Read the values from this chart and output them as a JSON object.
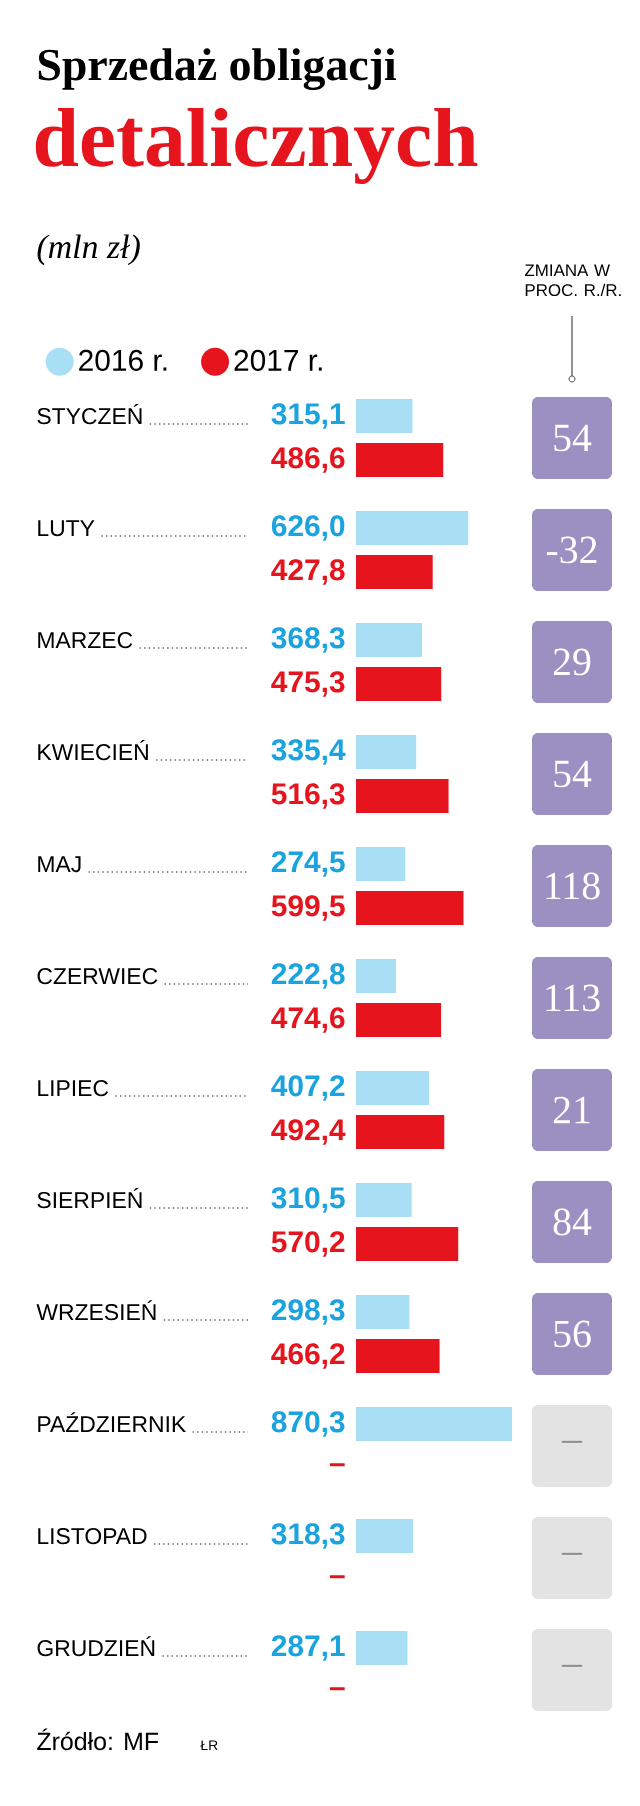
{
  "chart_data": {
    "type": "bar",
    "orientation": "horizontal",
    "title": "Sprzedaż obligacji",
    "subtitle": "detalicznych",
    "xlabel": "(mln zł)",
    "categories": [
      "STYCZEŃ",
      "LUTY",
      "MARZEC",
      "KWIECIEŃ",
      "MAJ",
      "CZERWIEC",
      "LIPIEC",
      "SIERPIEŃ",
      "WRZESIEŃ",
      "PAŹDZIERNIK",
      "LISTOPAD",
      "GRUDZIEŃ"
    ],
    "series": [
      {
        "name": "2016 r.",
        "color": "#a9dff5",
        "values": [
          315.1,
          626.0,
          368.3,
          335.4,
          274.5,
          222.8,
          407.2,
          310.5,
          298.3,
          870.3,
          318.3,
          287.1
        ],
        "value_labels": [
          "315,1",
          "626,0",
          "368,3",
          "335,4",
          "274,5",
          "222,8",
          "407,2",
          "310,5",
          "298,3",
          "870,3",
          "318,3",
          "287,1"
        ]
      },
      {
        "name": "2017 r.",
        "color": "#e5141d",
        "values": [
          486.6,
          427.8,
          475.3,
          516.3,
          599.5,
          474.6,
          492.4,
          570.2,
          466.2,
          null,
          null,
          null
        ],
        "value_labels": [
          "486,6",
          "427,8",
          "475,3",
          "516,3",
          "599,5",
          "474,6",
          "492,4",
          "570,2",
          "466,2",
          "–",
          "–",
          "–"
        ]
      }
    ],
    "legend": "top left",
    "tick_labels": "y",
    "annotations": [
      "ZMIANA W PROC. R./R.",
      "54",
      "-32",
      "29",
      "54",
      "118",
      "113",
      "21",
      "84",
      "56",
      "–",
      "–",
      "–",
      "Źródło: MF",
      "ŁR"
    ]
  }
}
